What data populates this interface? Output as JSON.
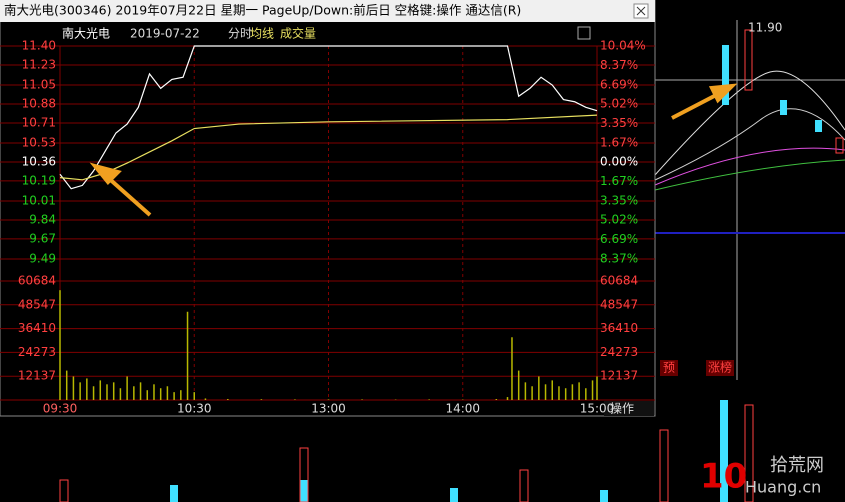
{
  "window": {
    "title": "南大光电(300346)  2019年07月22日  星期一  PageUp/Down:前后日  空格键:操作  通达信(R)",
    "button": "操作"
  },
  "background": {
    "price_label": "11.90",
    "tags": [
      "预",
      "涨榜"
    ],
    "watermark": [
      "拾荒网",
      "10",
      "Huang.cn"
    ]
  },
  "chart_data": [
    {
      "type": "line",
      "title": "南大光电",
      "date": "2019-07-22",
      "mode": "分时",
      "xlim": [
        0,
        240
      ],
      "ylim": [
        9.49,
        11.4
      ],
      "y2lim": [
        -8.37,
        10.04
      ],
      "grid": true,
      "yticks": [
        {
          "value": 11.4,
          "label": "11.40"
        },
        {
          "value": 11.23,
          "label": "11.23"
        },
        {
          "value": 11.05,
          "label": "11.05"
        },
        {
          "value": 10.88,
          "label": "10.88"
        },
        {
          "value": 10.71,
          "label": "10.71"
        },
        {
          "value": 10.53,
          "label": "10.53"
        },
        {
          "value": 10.36,
          "label": "10.36"
        },
        {
          "value": 10.19,
          "label": "10.19"
        },
        {
          "value": 10.01,
          "label": "10.01"
        },
        {
          "value": 9.84,
          "label": "9.84"
        },
        {
          "value": 9.67,
          "label": "9.67"
        },
        {
          "value": 9.49,
          "label": "9.49"
        }
      ],
      "y2ticks": [
        {
          "value": 10.04,
          "label": "10.04%"
        },
        {
          "value": 8.37,
          "label": "8.37%"
        },
        {
          "value": 6.69,
          "label": "6.69%"
        },
        {
          "value": 5.02,
          "label": "5.02%"
        },
        {
          "value": 3.35,
          "label": "3.35%"
        },
        {
          "value": 1.67,
          "label": "1.67%"
        },
        {
          "value": 0,
          "label": "0.00%"
        },
        {
          "value": -1.67,
          "label": "1.67%"
        },
        {
          "value": -3.35,
          "label": "3.35%"
        },
        {
          "value": -5.02,
          "label": "5.02%"
        },
        {
          "value": -6.69,
          "label": "6.69%"
        },
        {
          "value": -8.37,
          "label": "8.37%"
        }
      ],
      "series": [
        {
          "color": "#ffffff",
          "x": [
            0,
            5,
            10,
            15,
            20,
            25,
            30,
            35,
            40,
            45,
            50,
            55,
            60,
            65,
            70,
            75,
            80,
            85,
            90,
            95,
            100,
            105,
            110,
            115,
            120,
            125,
            130,
            135,
            140,
            145,
            150,
            155,
            160,
            165,
            170,
            175,
            180,
            185,
            190,
            195,
            200,
            205,
            210,
            215,
            220,
            225,
            230,
            235,
            240
          ],
          "values": [
            10.25,
            10.12,
            10.15,
            10.28,
            10.45,
            10.62,
            10.7,
            10.85,
            11.15,
            11.02,
            11.1,
            11.12,
            11.4,
            11.4,
            11.4,
            11.4,
            11.4,
            11.4,
            11.4,
            11.4,
            11.4,
            11.4,
            11.4,
            11.4,
            11.4,
            11.4,
            11.4,
            11.4,
            11.4,
            11.4,
            11.4,
            11.4,
            11.4,
            11.4,
            11.4,
            11.4,
            11.4,
            11.4,
            11.4,
            11.4,
            11.4,
            10.95,
            11.02,
            11.12,
            11.05,
            10.92,
            10.9,
            10.85,
            10.82
          ]
        },
        {
          "name": "均线",
          "color": "#e8e060",
          "x": [
            0,
            10,
            20,
            30,
            40,
            50,
            60,
            80,
            120,
            200,
            240
          ],
          "values": [
            10.22,
            10.2,
            10.26,
            10.35,
            10.45,
            10.55,
            10.66,
            10.7,
            10.72,
            10.74,
            10.78
          ]
        }
      ]
    },
    {
      "type": "bar",
      "title": "成交量",
      "xlim": [
        0,
        240
      ],
      "ylim": [
        0,
        60684
      ],
      "yticks": [
        12137,
        24273,
        36410,
        48547,
        60684
      ],
      "grid": true,
      "xticks": [
        {
          "value": 0,
          "label": "09:30"
        },
        {
          "value": 60,
          "label": "10:30"
        },
        {
          "value": 120,
          "label": "13:00"
        },
        {
          "value": 180,
          "label": "14:00"
        },
        {
          "value": 240,
          "label": "15:00"
        }
      ],
      "color": "#b8b800",
      "x": [
        0,
        3,
        6,
        9,
        12,
        15,
        18,
        21,
        24,
        27,
        30,
        33,
        36,
        39,
        42,
        45,
        48,
        51,
        54,
        57,
        60,
        65,
        75,
        90,
        105,
        120,
        135,
        150,
        165,
        180,
        195,
        200,
        202,
        205,
        208,
        211,
        214,
        217,
        220,
        223,
        226,
        229,
        232,
        235,
        238,
        240
      ],
      "values": [
        56000,
        15000,
        12000,
        9000,
        11000,
        7000,
        10000,
        8000,
        9000,
        6000,
        12000,
        7000,
        9000,
        5000,
        8000,
        6000,
        7000,
        4000,
        5000,
        45000,
        4000,
        800,
        500,
        400,
        300,
        300,
        300,
        200,
        300,
        200,
        500,
        1500,
        32000,
        15000,
        9000,
        7000,
        12000,
        8000,
        10000,
        7000,
        6000,
        8000,
        9000,
        6000,
        10000,
        12000
      ]
    }
  ]
}
